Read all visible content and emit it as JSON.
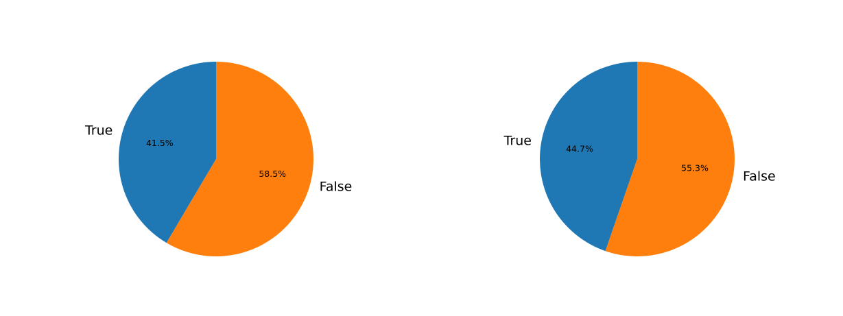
{
  "chart_data": [
    {
      "type": "pie",
      "labels": [
        "True",
        "False"
      ],
      "values": [
        41.5,
        58.5
      ],
      "autopct": [
        "41.5%",
        "58.5%"
      ],
      "colors": [
        "#1f77b4",
        "#ff7f0e"
      ],
      "title": ""
    },
    {
      "type": "pie",
      "labels": [
        "True",
        "False"
      ],
      "values": [
        44.7,
        55.3
      ],
      "autopct": [
        "44.7%",
        "55.3%"
      ],
      "colors": [
        "#1f77b4",
        "#ff7f0e"
      ],
      "title": ""
    }
  ]
}
